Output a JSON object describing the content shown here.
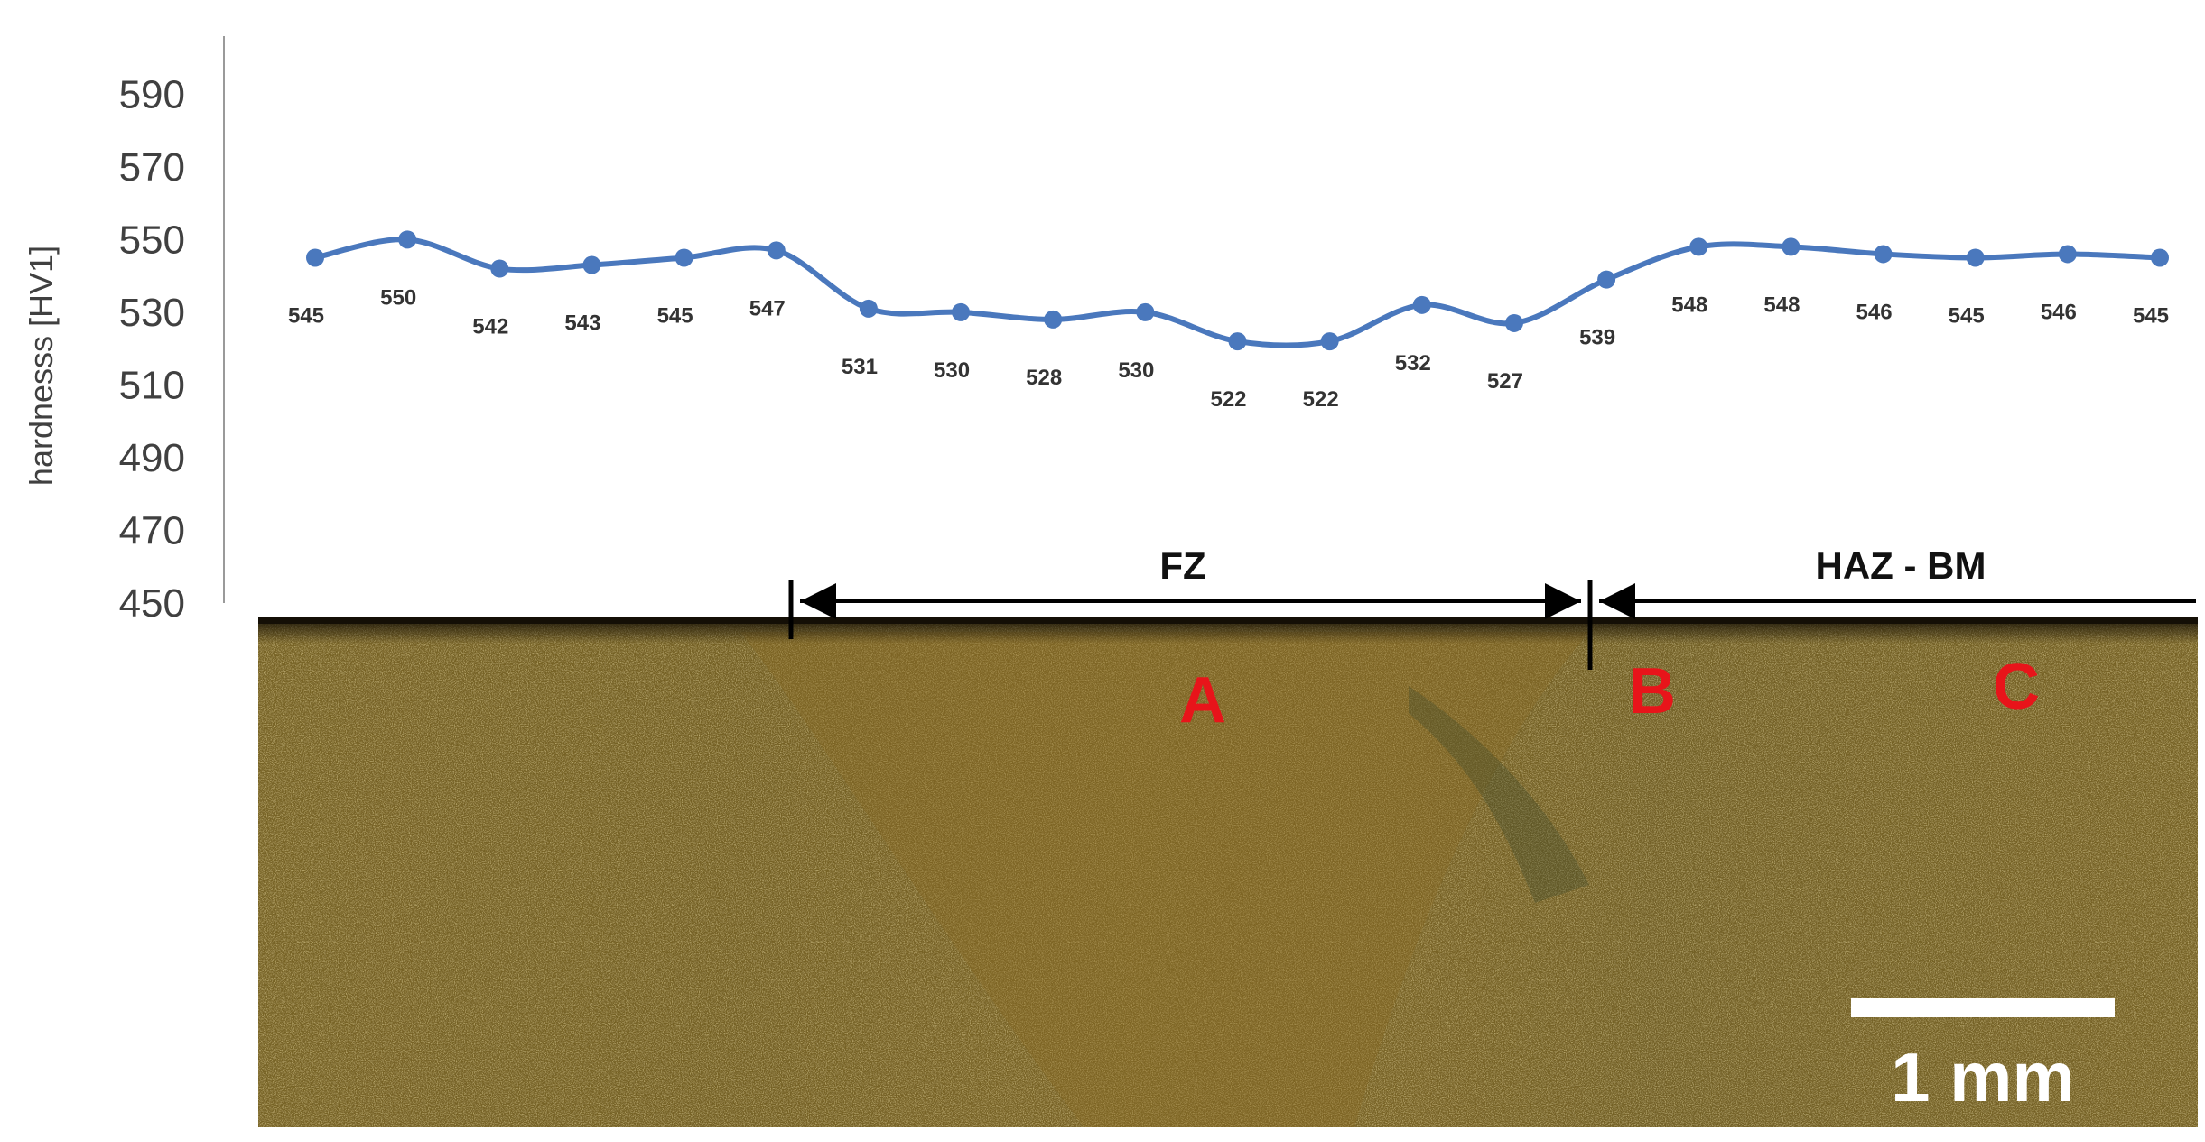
{
  "chart_data": {
    "type": "line",
    "ylabel": "hardnesss [HV1]",
    "xlabel": "",
    "title": "",
    "ylim": [
      450,
      600
    ],
    "yticks": [
      450,
      470,
      490,
      510,
      530,
      550,
      570,
      590
    ],
    "grid": false,
    "series": [
      {
        "values": [
          545,
          550,
          542,
          543,
          545,
          547,
          531,
          530,
          528,
          530,
          522,
          522,
          532,
          527,
          539,
          548,
          548,
          546,
          545,
          546,
          545
        ],
        "labels": [
          "545",
          "550",
          "542",
          "543",
          "545",
          "547",
          "531",
          "530",
          "528",
          "530",
          "522",
          "522",
          "532",
          "527",
          "539",
          "548",
          "548",
          "546",
          "545",
          "546",
          "545"
        ]
      }
    ]
  },
  "annotations": {
    "zone_fz": "FZ",
    "zone_haz_bm": "HAZ - BM",
    "markers": [
      {
        "text": "A"
      },
      {
        "text": "B"
      },
      {
        "text": "C"
      }
    ],
    "scale_bar": "1 mm"
  },
  "colors": {
    "series": "#4a78bd",
    "marker_text": "#e8141a",
    "photo_base": "#6b5a24"
  }
}
